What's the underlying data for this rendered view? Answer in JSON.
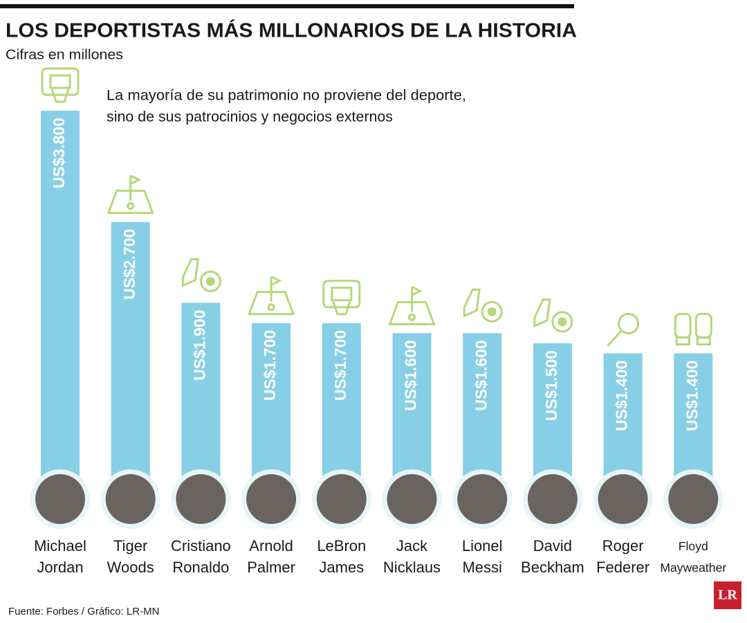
{
  "chart_data": {
    "type": "bar",
    "title": "LOS DEPORTISTAS MÁS MILLONARIOS DE LA HISTORIA",
    "subtitle": "Cifras en millones",
    "annotation": [
      "La mayoría de su patrimonio no proviene del deporte,",
      "sino de sus patrocinios y negocios externos"
    ],
    "categories": [
      "Michael Jordan",
      "Tiger Woods",
      "Cristiano Ronaldo",
      "Arnold Palmer",
      "LeBron James",
      "Jack Nicklaus",
      "Lionel Messi",
      "David Beckham",
      "Roger Federer",
      "Floyd Mayweather"
    ],
    "values": [
      3800,
      2700,
      1900,
      1700,
      1700,
      1600,
      1600,
      1500,
      1400,
      1400
    ],
    "value_labels": [
      "US$3.800",
      "US$2.700",
      "US$1.900",
      "US$1.700",
      "US$1.700",
      "US$1.600",
      "US$1.600",
      "US$1.500",
      "US$1.400",
      "US$1.400"
    ],
    "color": "#87cfe6",
    "source": "Fuente: Forbes / Gráfico: LR-MN",
    "logo": "LR"
  }
}
